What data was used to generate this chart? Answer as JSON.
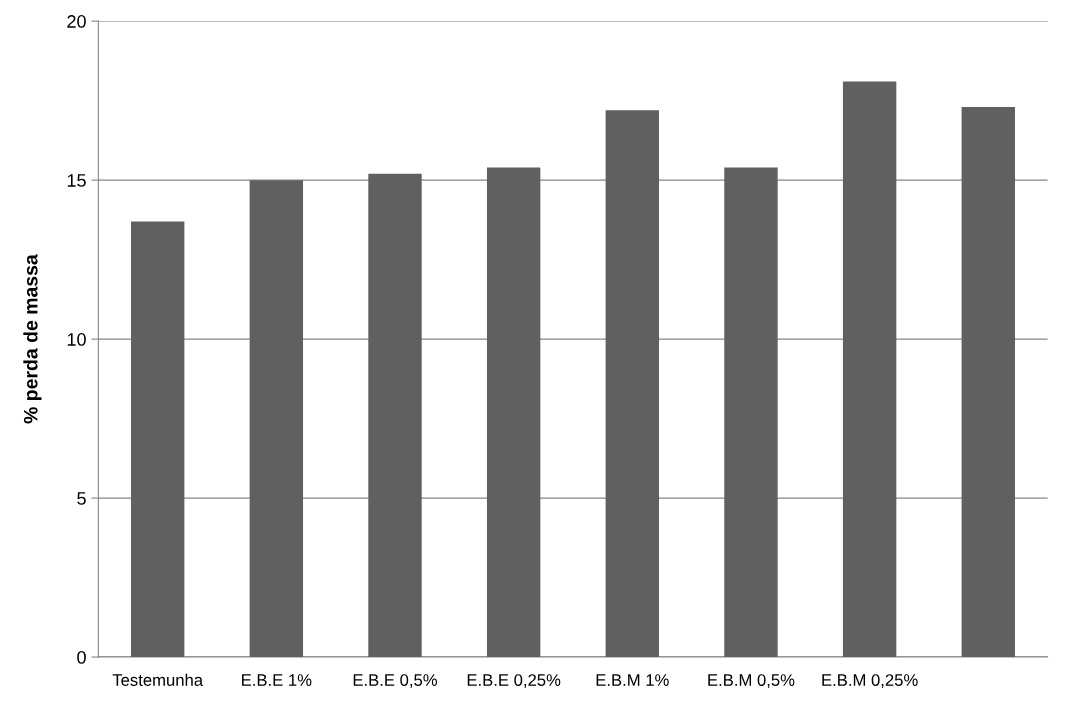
{
  "chart_data": {
    "type": "bar",
    "ylabel": "% perda de massa",
    "categories": [
      "Testemunha",
      "E.B.E 1%",
      "E.B.E 0,5%",
      "E.B.E 0,25%",
      "E.B.M 1%",
      "E.B.M 0,5%",
      "E.B.M 0,25%",
      null
    ],
    "values": [
      13.7,
      15.0,
      15.2,
      15.4,
      17.2,
      15.4,
      18.1,
      17.3
    ],
    "color": "#606060",
    "ylim": [
      0,
      20
    ],
    "yticks": [
      0,
      5,
      10,
      15,
      20
    ],
    "grid": "y"
  }
}
